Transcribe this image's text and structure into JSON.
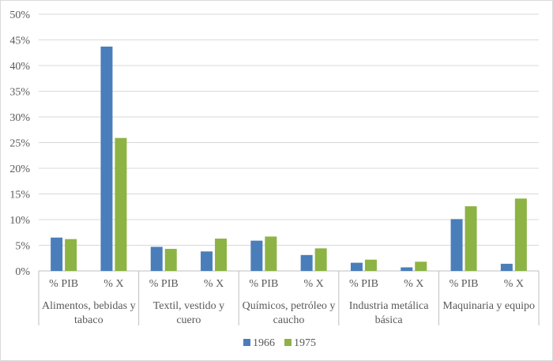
{
  "chart_data": {
    "type": "bar",
    "title": "",
    "xlabel": "",
    "ylabel": "",
    "ylim": [
      0,
      0.5
    ],
    "y_tick_values": [
      0,
      0.05,
      0.1,
      0.15,
      0.2,
      0.25,
      0.3,
      0.35,
      0.4,
      0.45,
      0.5
    ],
    "y_tick_labels": [
      "0%",
      "5%",
      "10%",
      "15%",
      "20%",
      "25%",
      "30%",
      "35%",
      "40%",
      "45%",
      "50%"
    ],
    "grid": true,
    "legend_position": "bottom",
    "groups": [
      {
        "label_lines": [
          "Alimentos, bebidas y",
          "tabaco"
        ]
      },
      {
        "label_lines": [
          "Textil, vestido y",
          "cuero"
        ]
      },
      {
        "label_lines": [
          "Químicos, petróleo y",
          "caucho"
        ]
      },
      {
        "label_lines": [
          "Industria metálica",
          "básica"
        ]
      },
      {
        "label_lines": [
          "Maquinaria y equipo"
        ]
      }
    ],
    "categories": [
      "% PIB",
      "% X",
      "% PIB",
      "% X",
      "% PIB",
      "% X",
      "% PIB",
      "% X",
      "% PIB",
      "% X"
    ],
    "series": [
      {
        "name": "1966",
        "color": "#4a7ebb",
        "values": [
          0.065,
          0.437,
          0.047,
          0.038,
          0.059,
          0.031,
          0.016,
          0.007,
          0.101,
          0.014
        ]
      },
      {
        "name": "1975",
        "color": "#8db344",
        "values": [
          0.062,
          0.259,
          0.043,
          0.063,
          0.067,
          0.044,
          0.022,
          0.018,
          0.126,
          0.141
        ]
      }
    ]
  },
  "colors": {
    "gridline": "#d9d9d9",
    "axis": "#bfbfbf",
    "text": "#595959",
    "border": "#d9d9d9"
  }
}
